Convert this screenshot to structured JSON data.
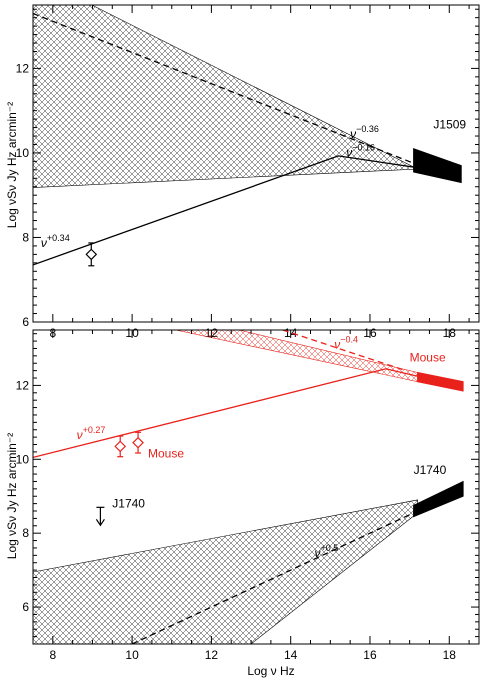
{
  "chart_data": [
    {
      "type": "line",
      "panel": "top",
      "xlabel": "Log ν Hz",
      "ylabel": "Log νSν Jy Hz arcmin⁻²",
      "xlim": [
        7.5,
        18.75
      ],
      "ylim": [
        6,
        13.5
      ],
      "x_ticks": [
        8,
        10,
        12,
        14,
        16,
        18
      ],
      "y_ticks": [
        6,
        8,
        10,
        12
      ],
      "hatched_region": {
        "polygon": [
          [
            7.5,
            14.2
          ],
          [
            17.2,
            9.62
          ],
          [
            7.5,
            9.18
          ]
        ],
        "color": "#000000"
      },
      "series": [
        {
          "x": [
            7.5,
            17.2
          ],
          "y": [
            13.3,
            9.72
          ],
          "style": "dashed",
          "color": "#000000"
        },
        {
          "x": [
            7.5,
            15.2,
            17.2
          ],
          "y": [
            7.35,
            9.93,
            9.65
          ],
          "style": "solid",
          "color": "#000000"
        }
      ],
      "xray_band": {
        "x": [
          17.1,
          18.3
        ],
        "y_top": [
          10.1,
          9.7
        ],
        "y_bottom": [
          9.55,
          9.3
        ],
        "color": "#000000"
      },
      "points": [
        {
          "x": 8.97,
          "y": 7.6,
          "yerr": 0.27,
          "marker": "diamond",
          "color": "#000000"
        }
      ],
      "labels": [
        {
          "text": "J1509",
          "x": 17.6,
          "y": 10.58,
          "color": "#000000"
        },
        {
          "base": "ν",
          "exp": "−0.36",
          "x": 15.5,
          "y": 10.35,
          "color": "#000000"
        },
        {
          "base": "ν",
          "exp": "−0.16",
          "x": 15.4,
          "y": 9.92,
          "color": "#000000"
        },
        {
          "base": "ν",
          "exp": "+0.34",
          "x": 7.7,
          "y": 7.78,
          "color": "#000000"
        }
      ]
    },
    {
      "type": "line",
      "panel": "bottom",
      "xlabel": "Log ν Hz",
      "ylabel": "Log νSν Jy Hz arcmin⁻²",
      "xlim": [
        7.5,
        18.75
      ],
      "ylim": [
        5,
        13.5
      ],
      "x_ticks": [
        8,
        10,
        12,
        14,
        16,
        18
      ],
      "y_ticks": [
        6,
        8,
        10,
        12
      ],
      "hatched_regions": [
        {
          "polygon": [
            [
              11.1,
              13.5
            ],
            [
              12.7,
              13.5
            ],
            [
              17.2,
              12.35
            ],
            [
              17.2,
              12.1
            ]
          ],
          "color": "#e8221b"
        },
        {
          "polygon": [
            [
              7.5,
              6.95
            ],
            [
              17.2,
              8.9
            ],
            [
              17.2,
              8.55
            ],
            [
              13.0,
              5.0
            ],
            [
              7.5,
              5.0
            ]
          ],
          "color": "#000000"
        }
      ],
      "series": [
        {
          "x": [
            7.5,
            16.4,
            17.2
          ],
          "y": [
            10.05,
            12.45,
            12.25
          ],
          "style": "solid",
          "color": "#e8221b"
        },
        {
          "x": [
            13.8,
            16.9
          ],
          "y": [
            13.5,
            12.4
          ],
          "style": "dashed",
          "color": "#e8221b"
        },
        {
          "x": [
            10.0,
            17.2
          ],
          "y": [
            5.0,
            8.6
          ],
          "style": "dashed",
          "color": "#000000"
        }
      ],
      "xray_bands": [
        {
          "x": [
            17.2,
            18.35
          ],
          "y_top": [
            12.35,
            12.1
          ],
          "y_bottom": [
            12.1,
            11.85
          ],
          "color": "#e8221b"
        },
        {
          "x": [
            17.1,
            18.35
          ],
          "y_top": [
            8.75,
            9.4
          ],
          "y_bottom": [
            8.45,
            9.0
          ],
          "color": "#000000"
        }
      ],
      "points": [
        {
          "x": 9.7,
          "y": 10.35,
          "yerr": 0.28,
          "marker": "diamond",
          "color": "#e8221b"
        },
        {
          "x": 10.15,
          "y": 10.45,
          "yerr": 0.28,
          "marker": "diamond",
          "color": "#e8221b"
        }
      ],
      "upper_limit": {
        "x": 9.2,
        "y": 8.7,
        "color": "#000000"
      },
      "labels": [
        {
          "text": "Mouse",
          "x": 17.0,
          "y": 12.65,
          "color": "#e8221b"
        },
        {
          "text": "Mouse",
          "x": 10.4,
          "y": 10.05,
          "color": "#e8221b"
        },
        {
          "text": "J1740",
          "x": 17.1,
          "y": 9.6,
          "color": "#000000"
        },
        {
          "text": "J1740",
          "x": 9.5,
          "y": 8.7,
          "color": "#000000"
        },
        {
          "base": "ν",
          "exp": "+0.27",
          "x": 8.6,
          "y": 10.55,
          "color": "#e8221b"
        },
        {
          "base": "ν",
          "exp": "−0.4",
          "x": 15.1,
          "y": 13.0,
          "color": "#e8221b"
        },
        {
          "base": "ν",
          "exp": "+0.5",
          "x": 14.6,
          "y": 7.35,
          "color": "#000000"
        }
      ]
    }
  ]
}
